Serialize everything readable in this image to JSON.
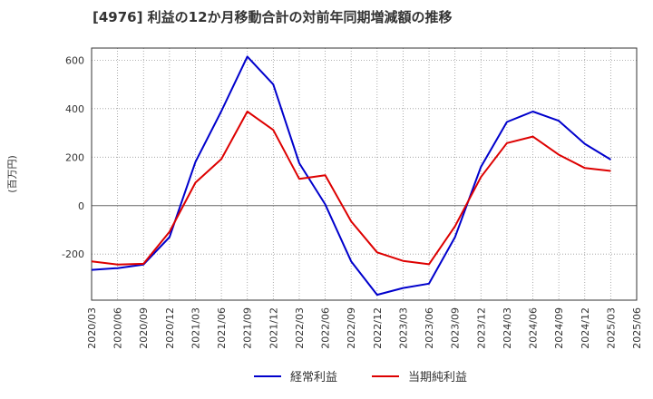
{
  "chart_data": {
    "type": "line",
    "title": "[4976]  利益の12か月移動合計の対前年同期増減額の推移",
    "ylabel": "(百万円)",
    "ylim": [
      -390,
      650
    ],
    "yticks": [
      600,
      400,
      200,
      0,
      -200
    ],
    "x": [
      "2020/03",
      "2020/06",
      "2020/09",
      "2020/12",
      "2021/03",
      "2021/06",
      "2021/09",
      "2021/12",
      "2022/03",
      "2022/06",
      "2022/09",
      "2022/12",
      "2023/03",
      "2023/06",
      "2023/09",
      "2023/12",
      "2024/03",
      "2024/06",
      "2024/09",
      "2024/12",
      "2025/03",
      "2025/06"
    ],
    "grid": true,
    "legend_position": "bottom",
    "series": [
      {
        "name": "経常利益",
        "color": "#0000cc",
        "values": [
          -265,
          -258,
          -243,
          -130,
          180,
          390,
          615,
          500,
          175,
          5,
          -230,
          -368,
          -340,
          -322,
          -130,
          160,
          345,
          388,
          350,
          255,
          190,
          null
        ]
      },
      {
        "name": "当期純利益",
        "color": "#dd0000",
        "values": [
          -230,
          -243,
          -240,
          -108,
          95,
          192,
          388,
          312,
          110,
          125,
          -65,
          -193,
          -228,
          -242,
          -85,
          118,
          258,
          285,
          210,
          155,
          143,
          null
        ]
      }
    ]
  }
}
